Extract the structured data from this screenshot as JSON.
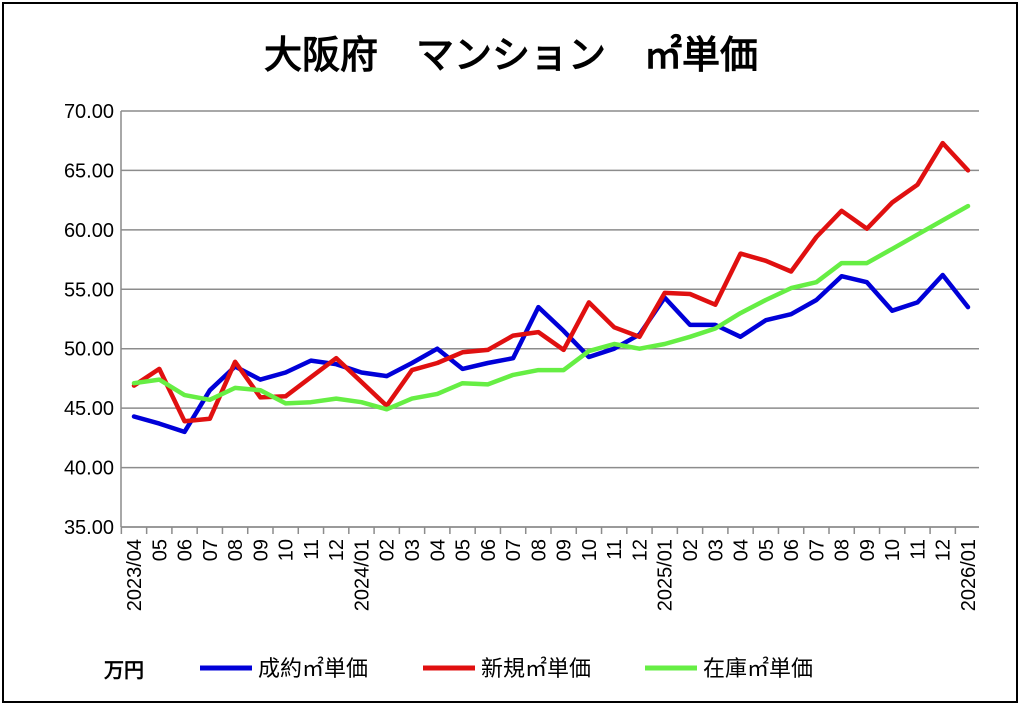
{
  "chart_data": {
    "type": "line",
    "title": "大阪府　マンション　㎡単価",
    "unit_label": "万円",
    "ylim": [
      35,
      70
    ],
    "yticks": [
      "70.00",
      "65.00",
      "60.00",
      "55.00",
      "50.00",
      "45.00",
      "40.00",
      "35.00"
    ],
    "ytick_values": [
      70,
      65,
      60,
      55,
      50,
      45,
      40,
      35
    ],
    "grid": "horizontal",
    "legend_position": "bottom",
    "categories": [
      "2023/04",
      "05",
      "06",
      "07",
      "08",
      "09",
      "10",
      "11",
      "12",
      "2024/01",
      "02",
      "03",
      "04",
      "05",
      "06",
      "07",
      "08",
      "09",
      "10",
      "11",
      "12",
      "2025/01",
      "02",
      "03",
      "04",
      "05",
      "06",
      "07",
      "08",
      "09",
      "10",
      "11",
      "12",
      "2026/01"
    ],
    "series": [
      {
        "name": "成約㎡単価",
        "color": "#0000d8",
        "values": [
          44.3,
          43.7,
          43.0,
          46.5,
          48.5,
          47.4,
          48.0,
          49.0,
          48.7,
          48.0,
          47.7,
          48.8,
          50.0,
          48.3,
          48.8,
          49.2,
          53.5,
          51.5,
          49.3,
          50.0,
          51.2,
          54.3,
          52.0,
          52.0,
          51.0,
          52.4,
          52.9,
          54.1,
          56.1,
          55.6,
          53.2,
          53.9,
          56.2,
          53.5
        ]
      },
      {
        "name": "新規㎡単価",
        "color": "#e01010",
        "values": [
          46.9,
          48.3,
          43.9,
          44.1,
          48.9,
          45.9,
          46.0,
          47.6,
          49.2,
          47.2,
          45.2,
          48.2,
          48.8,
          49.7,
          49.9,
          51.1,
          51.4,
          49.9,
          53.9,
          51.8,
          51.0,
          54.7,
          54.6,
          53.7,
          58.0,
          57.4,
          56.5,
          59.4,
          61.6,
          60.1,
          62.3,
          63.8,
          67.3,
          65.0
        ]
      },
      {
        "name": "在庫㎡単価",
        "color": "#66ee44",
        "values": [
          47.1,
          47.4,
          46.1,
          45.7,
          46.7,
          46.5,
          45.4,
          45.5,
          45.8,
          45.5,
          44.9,
          45.8,
          46.2,
          47.1,
          47.0,
          47.8,
          48.2,
          48.2,
          49.8,
          50.4,
          50.0,
          50.4,
          51.0,
          51.7,
          53.0,
          54.1,
          55.1,
          55.6,
          57.2,
          57.2,
          58.4,
          59.6,
          60.8,
          62.0
        ]
      }
    ]
  }
}
